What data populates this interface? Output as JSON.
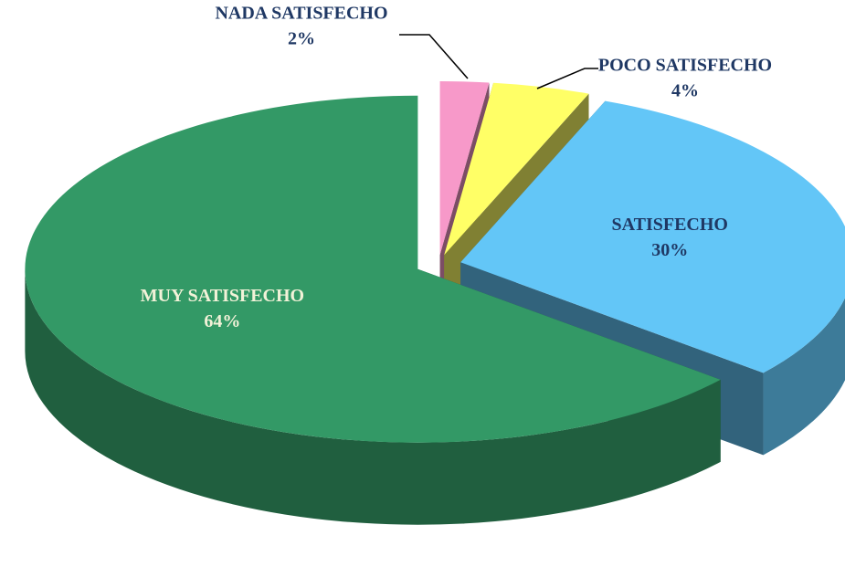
{
  "chart_data": {
    "type": "pie",
    "categories": [
      "NADA SATISFECHO",
      "POCO SATISFECHO",
      "SATISFECHO",
      "MUY SATISFECHO"
    ],
    "values": [
      2,
      4,
      30,
      64
    ],
    "value_labels": [
      "2%",
      "4%",
      "30%",
      "64%"
    ],
    "colors": [
      "#f799c9",
      "#ffff66",
      "#63c6f7",
      "#339966"
    ],
    "label_colors": [
      "#1f3864",
      "#1f3864",
      "#1f3864",
      "#f2f2d8"
    ]
  }
}
